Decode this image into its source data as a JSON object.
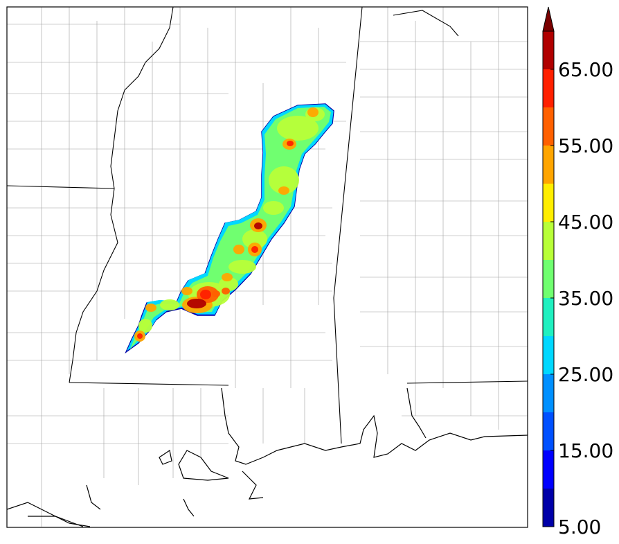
{
  "colorbar": {
    "ticks": [
      "5.00",
      "15.00",
      "25.00",
      "35.00",
      "45.00",
      "55.00",
      "65.00"
    ],
    "extend": "max",
    "bins": [
      {
        "from": 5,
        "to": 10,
        "color": "#0000a8"
      },
      {
        "from": 10,
        "to": 15,
        "color": "#0000ff"
      },
      {
        "from": 15,
        "to": 20,
        "color": "#0050ff"
      },
      {
        "from": 20,
        "to": 25,
        "color": "#0090ff"
      },
      {
        "from": 25,
        "to": 30,
        "color": "#00d8ff"
      },
      {
        "from": 30,
        "to": 35,
        "color": "#20f0c0"
      },
      {
        "from": 35,
        "to": 40,
        "color": "#70ff70"
      },
      {
        "from": 40,
        "to": 45,
        "color": "#b8ff38"
      },
      {
        "from": 45,
        "to": 50,
        "color": "#ffee00"
      },
      {
        "from": 50,
        "to": 55,
        "color": "#ffa500"
      },
      {
        "from": 55,
        "to": 60,
        "color": "#ff6000"
      },
      {
        "from": 60,
        "to": 65,
        "color": "#ff2000"
      },
      {
        "from": 65,
        "to": 70,
        "color": "#b00000"
      }
    ],
    "overflow_color": "#7a0000"
  },
  "colors": {
    "state_border": "#000000",
    "county_border": "#9a9a9a",
    "coast": "#000000"
  }
}
